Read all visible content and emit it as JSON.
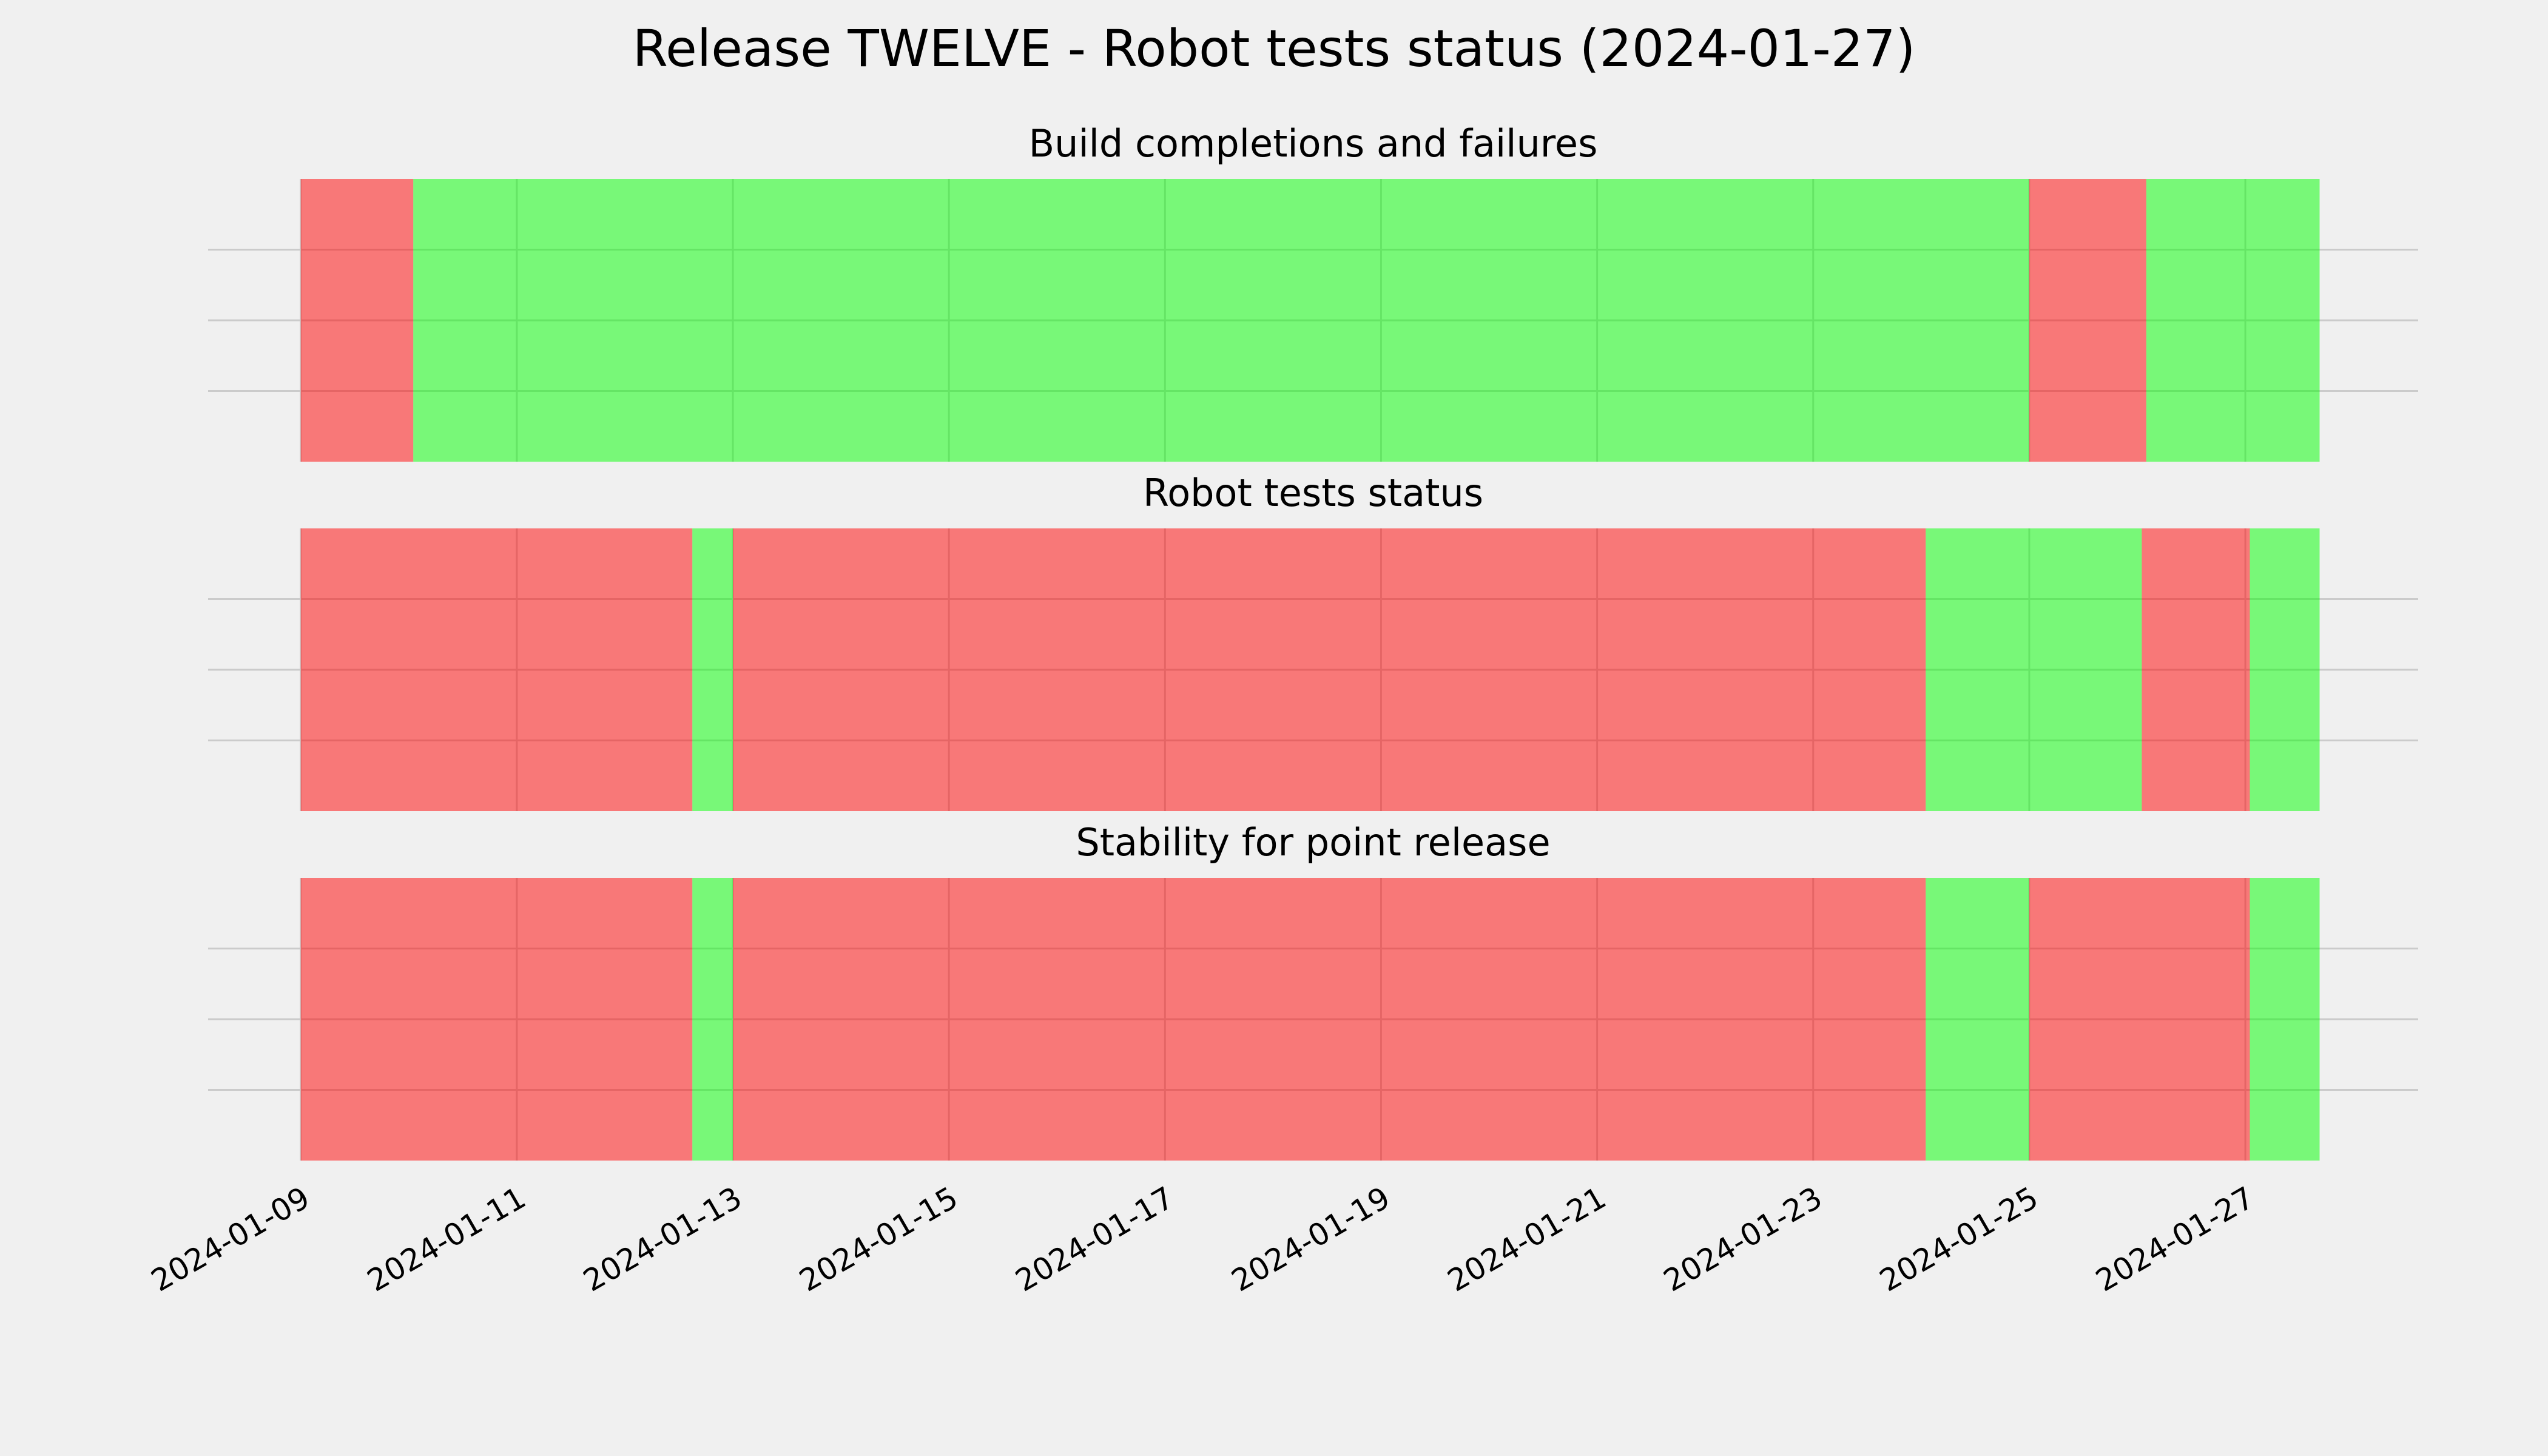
{
  "title": "Release TWELVE - Robot tests status (2024-01-27)",
  "chart_data": [
    {
      "type": "timeline",
      "title": "Build completions and failures",
      "xlim": [
        "2024-01-08T03:25",
        "2024-01-28T14:24"
      ],
      "xticks": [
        "2024-01-09",
        "2024-01-11",
        "2024-01-13",
        "2024-01-15",
        "2024-01-17",
        "2024-01-19",
        "2024-01-21",
        "2024-01-23",
        "2024-01-25",
        "2024-01-27"
      ],
      "xtick_labels": false,
      "ylim": [
        0,
        1
      ],
      "yticks": [
        0.25,
        0.5,
        0.75
      ],
      "ytick_labels": false,
      "grid": true,
      "alpha": 0.5,
      "spans": [
        {
          "start": "2024-01-09",
          "end": "2024-01-10T01:00",
          "color": "#ff0000"
        },
        {
          "start": "2024-01-10T01:00",
          "end": "2024-01-25",
          "color": "#00ff00"
        },
        {
          "start": "2024-01-25",
          "end": "2024-01-26T02:00",
          "color": "#ff0000"
        },
        {
          "start": "2024-01-26T02:00",
          "end": "2024-01-27T16:30",
          "color": "#00ff00"
        }
      ]
    },
    {
      "type": "timeline",
      "title": "Robot tests status",
      "xlim": [
        "2024-01-08T03:25",
        "2024-01-28T14:24"
      ],
      "xticks": [
        "2024-01-09",
        "2024-01-11",
        "2024-01-13",
        "2024-01-15",
        "2024-01-17",
        "2024-01-19",
        "2024-01-21",
        "2024-01-23",
        "2024-01-25",
        "2024-01-27"
      ],
      "xtick_labels": false,
      "ylim": [
        0,
        1
      ],
      "yticks": [
        0.25,
        0.5,
        0.75
      ],
      "ytick_labels": false,
      "grid": true,
      "alpha": 0.5,
      "spans": [
        {
          "start": "2024-01-09",
          "end": "2024-01-12T15:00",
          "color": "#ff0000"
        },
        {
          "start": "2024-01-12T15:00",
          "end": "2024-01-13",
          "color": "#00ff00"
        },
        {
          "start": "2024-01-13",
          "end": "2024-01-24T01:00",
          "color": "#ff0000"
        },
        {
          "start": "2024-01-24T01:00",
          "end": "2024-01-26T01:00",
          "color": "#00ff00"
        },
        {
          "start": "2024-01-26T01:00",
          "end": "2024-01-27T01:00",
          "color": "#ff0000"
        },
        {
          "start": "2024-01-27T01:00",
          "end": "2024-01-27T16:30",
          "color": "#00ff00"
        }
      ]
    },
    {
      "type": "timeline",
      "title": "Stability for point release",
      "xlim": [
        "2024-01-08T03:25",
        "2024-01-28T14:24"
      ],
      "xticks": [
        "2024-01-09",
        "2024-01-11",
        "2024-01-13",
        "2024-01-15",
        "2024-01-17",
        "2024-01-19",
        "2024-01-21",
        "2024-01-23",
        "2024-01-25",
        "2024-01-27"
      ],
      "xtick_labels": true,
      "ylim": [
        0,
        1
      ],
      "yticks": [
        0.25,
        0.5,
        0.75
      ],
      "ytick_labels": false,
      "grid": true,
      "alpha": 0.5,
      "spans": [
        {
          "start": "2024-01-09",
          "end": "2024-01-12T15:00",
          "color": "#ff0000"
        },
        {
          "start": "2024-01-12T15:00",
          "end": "2024-01-13",
          "color": "#00ff00"
        },
        {
          "start": "2024-01-13",
          "end": "2024-01-24T01:00",
          "color": "#ff0000"
        },
        {
          "start": "2024-01-24T01:00",
          "end": "2024-01-25",
          "color": "#00ff00"
        },
        {
          "start": "2024-01-25",
          "end": "2024-01-27T01:00",
          "color": "#ff0000"
        },
        {
          "start": "2024-01-27T01:00",
          "end": "2024-01-27T16:30",
          "color": "#00ff00"
        }
      ]
    }
  ]
}
